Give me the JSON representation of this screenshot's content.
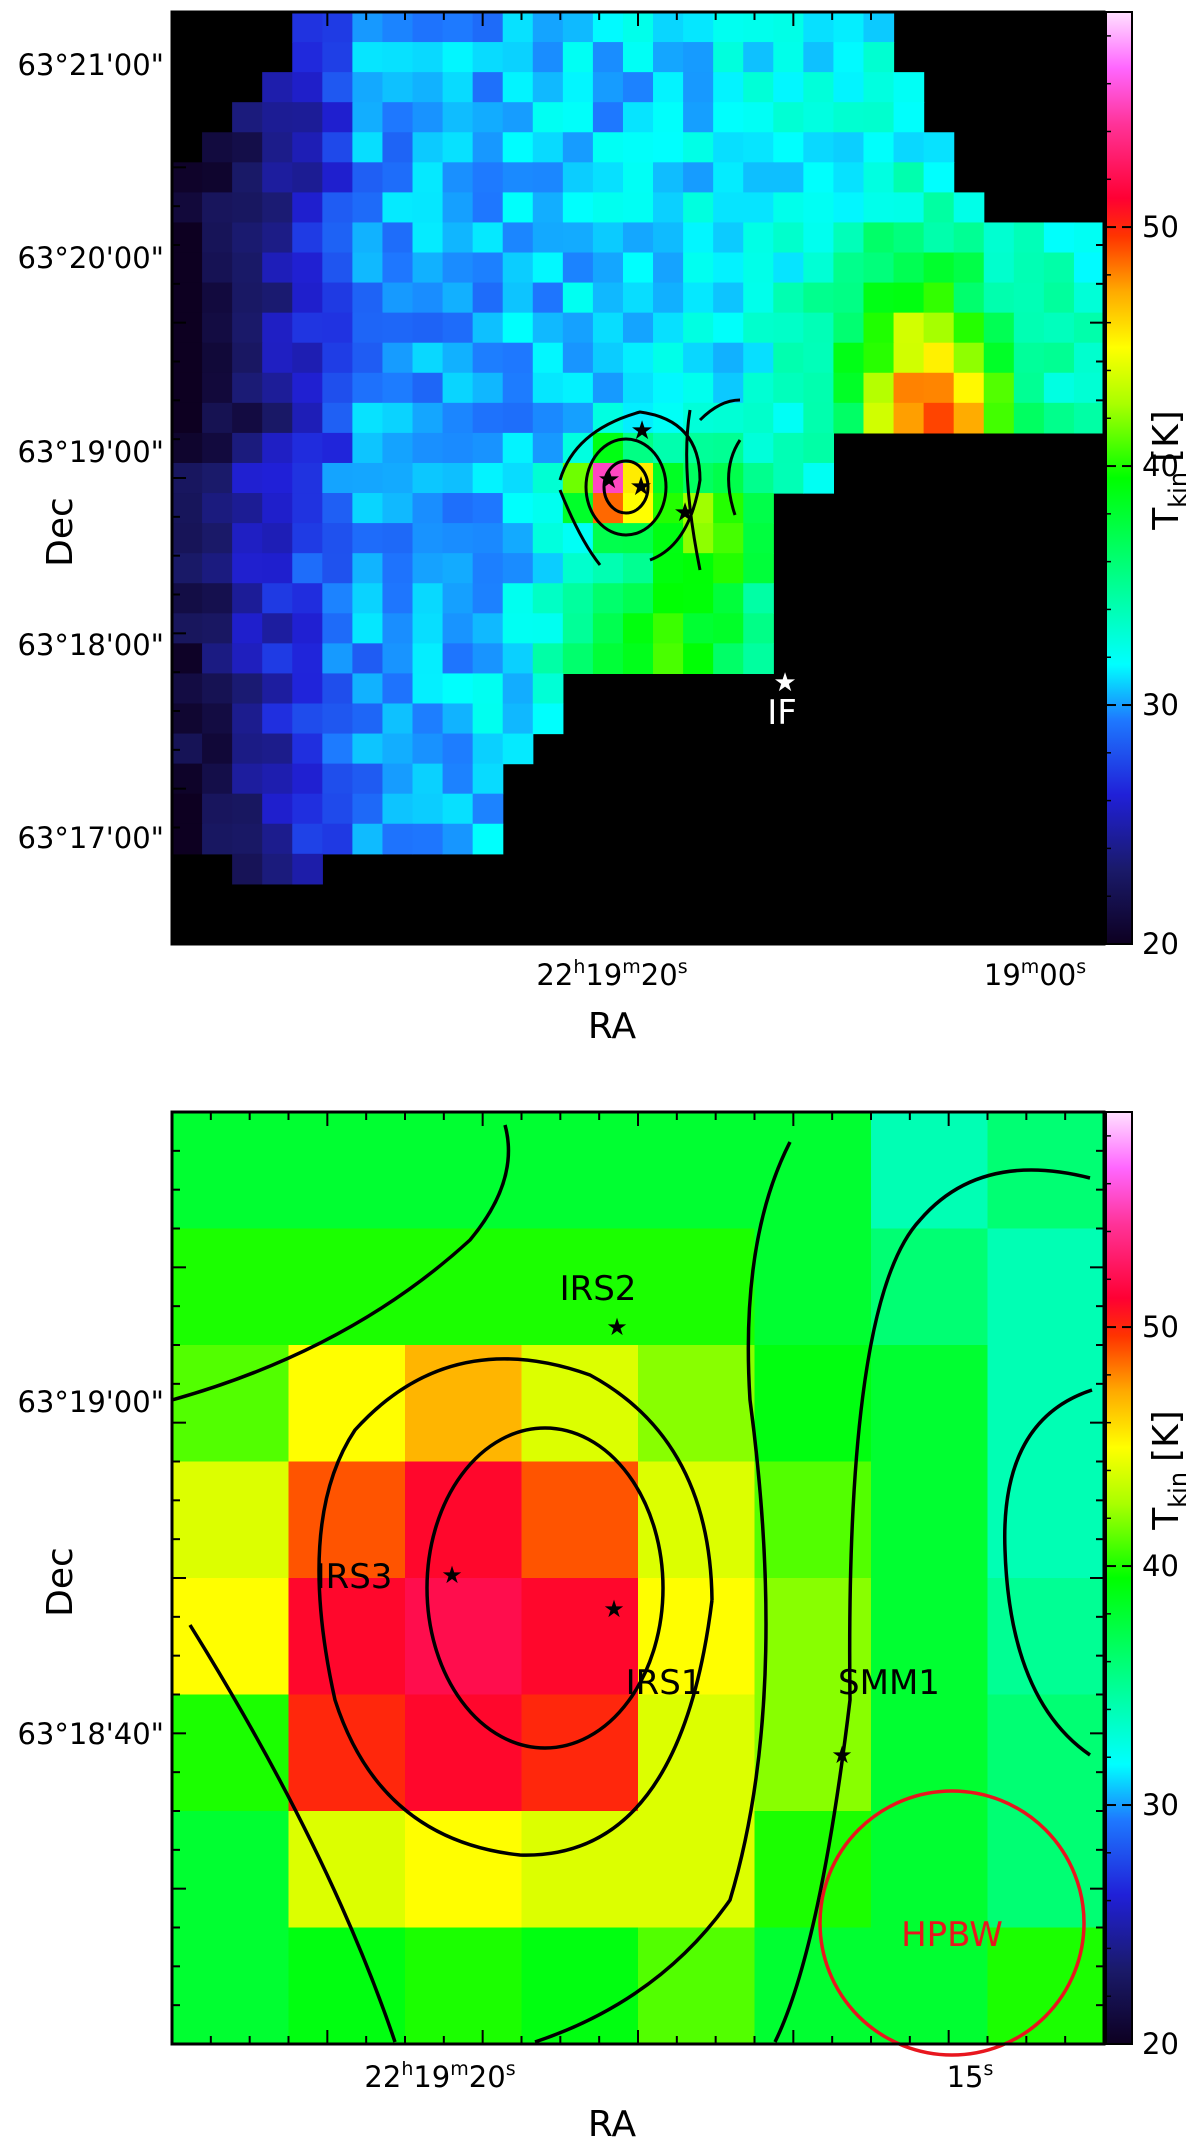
{
  "chart_data": [
    {
      "type": "heatmap",
      "panel": "top",
      "xlabel": "RA",
      "ylabel": "Dec",
      "colorbar_label_main": "T",
      "colorbar_label_sub": "kin",
      "colorbar_label_unit": "[K]",
      "colorbar_range": [
        20,
        59
      ],
      "colorbar_ticks": [
        "20",
        "30",
        "40",
        "50"
      ],
      "x_ticks": [
        {
          "h": "22",
          "m": "19",
          "s": "20",
          "unit_h": "h",
          "unit_m": "m",
          "unit_s": "s"
        },
        {
          "h": "",
          "m": "19",
          "s": "00",
          "unit_h": "",
          "unit_m": "m",
          "unit_s": "s"
        }
      ],
      "y_ticks": [
        "63°21'00\"",
        "63°20'00\"",
        "63°19'00\"",
        "63°18'00\"",
        "63°17'00\""
      ],
      "label": "IF",
      "grid_size": [
        31,
        31
      ],
      "contours_levels": 4
    },
    {
      "type": "heatmap",
      "panel": "bottom",
      "xlabel": "RA",
      "ylabel": "Dec",
      "colorbar_label_main": "T",
      "colorbar_label_sub": "kin",
      "colorbar_label_unit": "[K]",
      "colorbar_range": [
        20,
        59
      ],
      "colorbar_ticks": [
        "20",
        "30",
        "40",
        "50"
      ],
      "x_ticks": [
        {
          "h": "22",
          "m": "19",
          "s": "20",
          "unit_h": "h",
          "unit_m": "m",
          "unit_s": "s"
        },
        {
          "h": "",
          "m": "",
          "s": "15",
          "unit_h": "",
          "unit_m": "",
          "unit_s": "s"
        }
      ],
      "y_ticks": [
        "63°19'00\"",
        "63°18'40\""
      ],
      "sources": [
        {
          "name": "IRS2",
          "t": 0.5
        },
        {
          "name": "IRS3",
          "t": 0.5
        },
        {
          "name": "IRS1",
          "t": 0.5
        },
        {
          "name": "SMM1",
          "t": 0.5
        }
      ],
      "beam_label": "HPBW",
      "grid": [
        [
          38,
          38,
          38,
          38,
          38,
          38,
          34,
          36
        ],
        [
          40,
          40,
          40,
          40,
          40,
          38,
          36,
          34
        ],
        [
          41,
          45,
          47,
          44,
          42,
          39,
          38,
          34
        ],
        [
          44,
          49,
          51,
          49,
          44,
          41,
          38,
          34
        ],
        [
          45,
          51,
          52,
          51,
          45,
          42,
          38,
          35
        ],
        [
          40,
          50,
          51,
          50,
          44,
          42,
          38,
          36
        ],
        [
          38,
          44,
          45,
          44,
          44,
          40,
          38,
          36
        ],
        [
          38,
          39,
          40,
          39,
          41,
          38,
          38,
          40
        ]
      ]
    }
  ]
}
